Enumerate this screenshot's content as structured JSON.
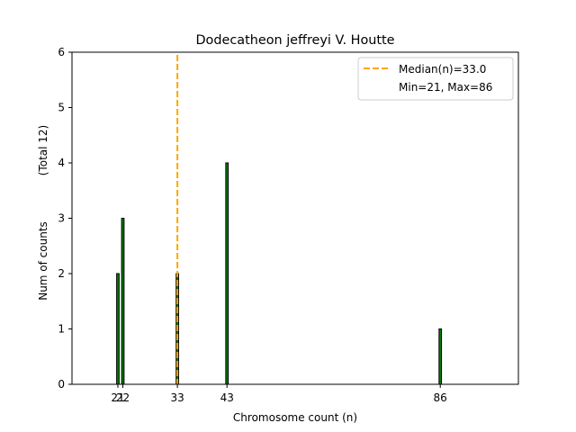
{
  "chart_data": {
    "type": "bar",
    "title": "Dodecatheon jeffreyi V. Houtte",
    "xlabel": "Chromosome count (n)",
    "ylabel": "Num of counts",
    "ylabel_total": "(Total 12)",
    "xlim": [
      11.75,
      101.75
    ],
    "ylim": [
      0,
      6
    ],
    "yticks": [
      0,
      1,
      2,
      3,
      4,
      5,
      6
    ],
    "xticks": [
      21,
      22,
      33,
      43,
      86
    ],
    "bars": [
      {
        "x": 21,
        "count": 2
      },
      {
        "x": 22,
        "count": 3
      },
      {
        "x": 33,
        "count": 2
      },
      {
        "x": 43,
        "count": 4
      },
      {
        "x": 86,
        "count": 1
      }
    ],
    "median": 33.0,
    "legend": {
      "position": "top-right",
      "median_label": "Median(n)=33.0",
      "range_label": "Min=21, Max=86"
    },
    "colors": {
      "bar_fill": "#008000",
      "bar_edge": "#000000",
      "median_line": "#ffa500"
    }
  }
}
